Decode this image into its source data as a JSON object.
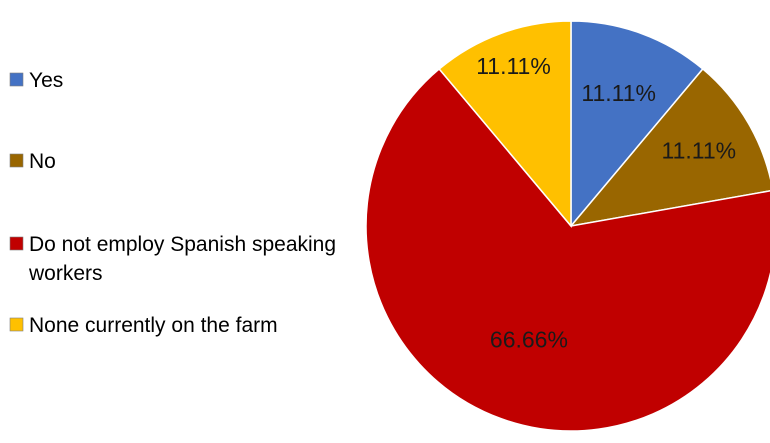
{
  "chart_data": {
    "type": "pie",
    "title": "",
    "legend_position": "left",
    "slices": [
      {
        "label": "Yes",
        "value": 11.11,
        "display": "11.11%",
        "color": "#4472C4"
      },
      {
        "label": "No",
        "value": 11.11,
        "display": "11.11%",
        "color": "#996600"
      },
      {
        "label_lines": [
          "Do not employ Spanish speaking",
          "workers"
        ],
        "label": "Do not employ Spanish speaking workers",
        "value": 66.66,
        "display": "66.66%",
        "color": "#C00000"
      },
      {
        "label": "None currently on the farm",
        "value": 11.11,
        "display": "11.11%",
        "color": "#FFC000"
      }
    ],
    "start_angle_deg": 0,
    "direction": "clockwise"
  }
}
